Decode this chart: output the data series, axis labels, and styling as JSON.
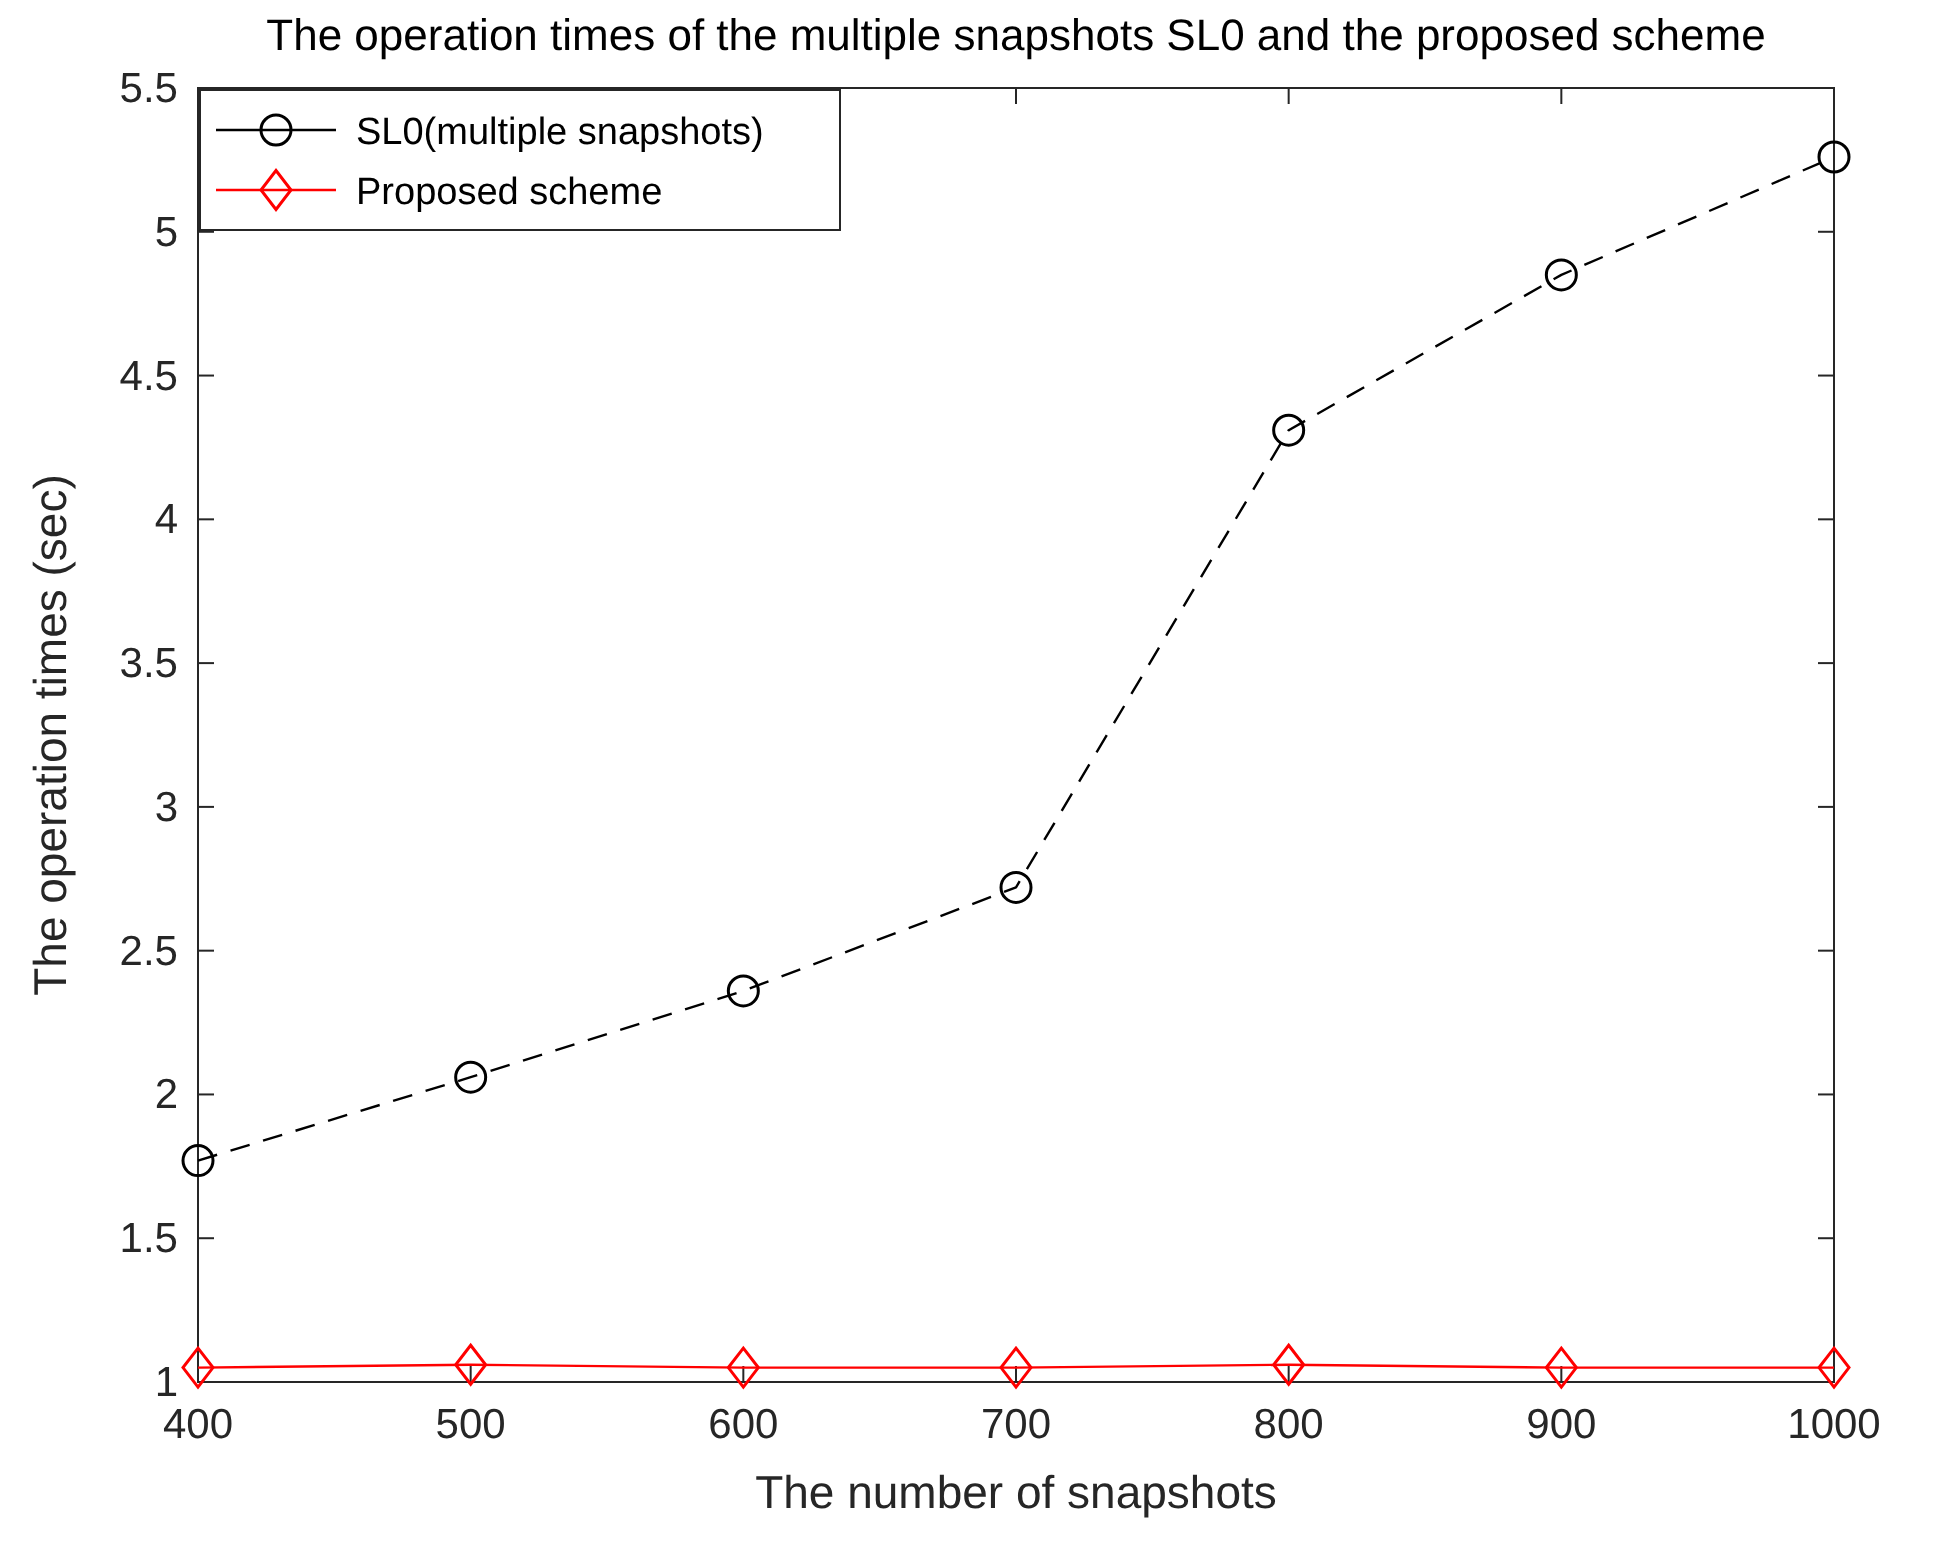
{
  "chart_data": {
    "type": "line",
    "title": "The operation times of the multiple snapshots SL0 and the proposed scheme",
    "xlabel": "The number of snapshots",
    "ylabel": "The operation times (sec)",
    "x": [
      400,
      500,
      600,
      700,
      800,
      900,
      1000
    ],
    "series": [
      {
        "name": "SL0(multiple snapshots)",
        "color": "#000000",
        "marker": "circle",
        "line_style": "dashed",
        "values": [
          1.77,
          2.06,
          2.36,
          2.72,
          4.31,
          4.85,
          5.26
        ]
      },
      {
        "name": "Proposed scheme",
        "color": "#ff0000",
        "marker": "diamond",
        "line_style": "solid",
        "values": [
          1.05,
          1.06,
          1.05,
          1.05,
          1.06,
          1.05,
          1.05
        ]
      }
    ],
    "xlim": [
      400,
      1000
    ],
    "xticks": [
      400,
      500,
      600,
      700,
      800,
      900,
      1000
    ],
    "ylim": [
      1,
      5.5
    ],
    "yticks": [
      1,
      1.5,
      2,
      2.5,
      3,
      3.5,
      4,
      4.5,
      5,
      5.5
    ],
    "grid": false,
    "legend": "top left"
  }
}
